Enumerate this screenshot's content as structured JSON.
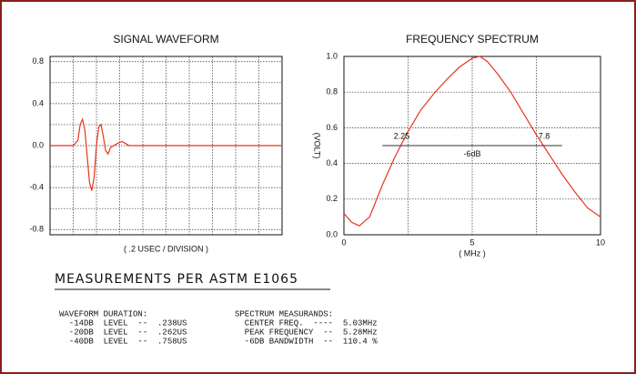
{
  "chart_data": [
    {
      "type": "line",
      "title": "SIGNAL WAVEFORM",
      "x_label": "( .2 USEC / DIVISION )",
      "xlim": [
        0,
        2
      ],
      "xminor": [
        0.2,
        0.4,
        0.6,
        0.8,
        1.0,
        1.2,
        1.4,
        1.6,
        1.8
      ],
      "ylim": [
        -0.85,
        0.85
      ],
      "yticks": [
        0.8,
        0.4,
        {
          "value": 0,
          "label": "0.0"
        },
        -0.4,
        -0.8
      ],
      "yminor": [
        0.6,
        0.2,
        -0.2,
        -0.6
      ],
      "grid": true,
      "series": [
        {
          "color": "#e8341c",
          "x": [
            0,
            0.2,
            0.24,
            0.26,
            0.28,
            0.3,
            0.32,
            0.34,
            0.36,
            0.38,
            0.4,
            0.42,
            0.44,
            0.46,
            0.48,
            0.5,
            0.52,
            0.55,
            0.58,
            0.62,
            0.65,
            0.68,
            0.72,
            2
          ],
          "values": [
            0,
            0,
            0.05,
            0.2,
            0.25,
            0.15,
            -0.1,
            -0.35,
            -0.43,
            -0.3,
            0.0,
            0.18,
            0.2,
            0.08,
            -0.05,
            -0.08,
            -0.02,
            0.0,
            0.02,
            0.04,
            0.02,
            0.0,
            0,
            0
          ]
        }
      ]
    },
    {
      "type": "line",
      "title": "FREQUENCY SPECTRUM",
      "x_label": "( MHz )",
      "y_label": "(VOLT)",
      "xlim": [
        0,
        10
      ],
      "xticks": [
        0,
        5,
        10
      ],
      "xminor": [
        2.5,
        7.5
      ],
      "ylim": [
        0,
        1
      ],
      "yticks": [
        {
          "value": 0,
          "label": "0.0"
        },
        0.2,
        0.4,
        0.6,
        0.8,
        {
          "value": 1,
          "label": "1.0"
        }
      ],
      "grid": true,
      "series": [
        {
          "color": "#e8341c",
          "x": [
            0,
            0.3,
            0.6,
            1,
            1.5,
            2,
            2.5,
            3,
            3.5,
            4,
            4.5,
            5,
            5.3,
            5.6,
            6,
            6.5,
            7,
            7.5,
            8,
            8.5,
            9,
            9.5,
            10
          ],
          "values": [
            0.12,
            0.07,
            0.05,
            0.1,
            0.28,
            0.44,
            0.58,
            0.7,
            0.79,
            0.87,
            0.94,
            0.99,
            1.0,
            0.97,
            0.9,
            0.8,
            0.68,
            0.56,
            0.45,
            0.34,
            0.24,
            0.15,
            0.1
          ]
        }
      ],
      "bandwidth_line": {
        "x": [
          1.5,
          8.5
        ],
        "y": 0.5
      },
      "annotations": [
        {
          "text": "2.25",
          "x": 2.25,
          "y": 0.55
        },
        {
          "text": "7.8",
          "x": 7.8,
          "y": 0.55
        },
        {
          "text": "-6dB",
          "x": 5,
          "y": 0.45
        }
      ]
    }
  ],
  "measurements": {
    "title": "MEASUREMENTS PER ASTM E1065",
    "waveform": [
      "WAVEFORM DURATION:",
      "  -14DB  LEVEL  --  .238US",
      "  -20DB  LEVEL  --  .262US",
      "  -40DB  LEVEL  --  .758US"
    ],
    "spectrum": [
      "SPECTRUM MEASURANDS:",
      "  CENTER FREQ.  ----  5.03MHz",
      "  PEAK FREQUENCY  --  5.28MHz",
      "  -6DB BANDWIDTH  --  110.4 %"
    ]
  }
}
